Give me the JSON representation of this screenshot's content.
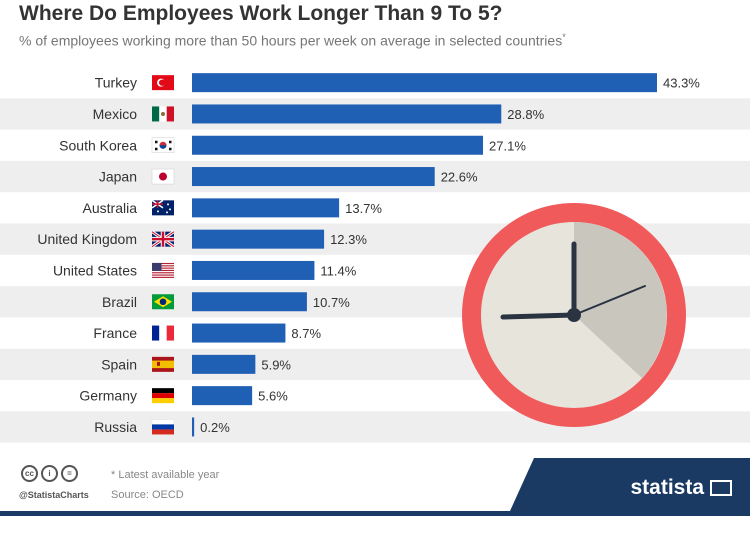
{
  "chart_data": {
    "type": "bar",
    "orientation": "horizontal",
    "title": "Where Do Employees Work Longer Than 9 To 5?",
    "subtitle": "% of employees working more than 50 hours per week on average in selected countries",
    "subtitle_mark": "*",
    "categories": [
      "Turkey",
      "Mexico",
      "South Korea",
      "Japan",
      "Australia",
      "United Kingdom",
      "United States",
      "Brazil",
      "France",
      "Spain",
      "Germany",
      "Russia"
    ],
    "values": [
      43.3,
      28.8,
      27.1,
      22.6,
      13.7,
      12.3,
      11.4,
      10.7,
      8.7,
      5.9,
      5.6,
      0.2
    ],
    "value_labels": [
      "43.3%",
      "28.8%",
      "27.1%",
      "22.6%",
      "13.7%",
      "12.3%",
      "11.4%",
      "10.7%",
      "8.7%",
      "5.9%",
      "5.6%",
      "0.2%"
    ],
    "flag_icons": [
      "turkey-flag-icon",
      "mexico-flag-icon",
      "south-korea-flag-icon",
      "japan-flag-icon",
      "australia-flag-icon",
      "united-kingdom-flag-icon",
      "united-states-flag-icon",
      "brazil-flag-icon",
      "france-flag-icon",
      "spain-flag-icon",
      "germany-flag-icon",
      "russia-flag-icon"
    ],
    "xlim": [
      0,
      45
    ],
    "grid": false,
    "legend": "none",
    "bar_color": "#1f5fb4",
    "row_stripe_color": "#eeeeee",
    "decoration": "clock-icon"
  },
  "footer": {
    "note": "* Latest available year",
    "source": "Source: OECD",
    "handle": "@StatistaCharts",
    "brand": "statista"
  },
  "colors": {
    "brand_navy": "#1b3a63",
    "clock_rim": "#f05a5a"
  }
}
